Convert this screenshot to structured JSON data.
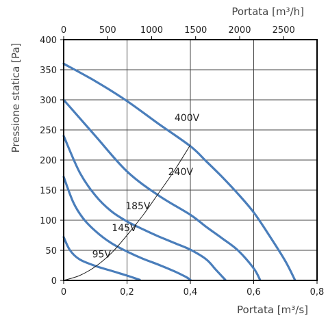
{
  "chart_data": {
    "type": "line",
    "title": "",
    "xlabel": "Portata [m³/s]",
    "ylabel": "Pressione statica [Pa]",
    "x2label": "Portata [m³/h]",
    "xlim": [
      0,
      0.8
    ],
    "ylim": [
      0,
      400
    ],
    "x2lim": [
      0,
      2880
    ],
    "x_ticks": [
      "0",
      "0,2",
      "0,4",
      "0,6",
      "0,8"
    ],
    "y_ticks": [
      "0",
      "50",
      "100",
      "150",
      "200",
      "250",
      "300",
      "350",
      "400"
    ],
    "x2_ticks": [
      "0",
      "500",
      "1000",
      "1500",
      "2000",
      "2500"
    ],
    "grid": true,
    "series": [
      {
        "name": "95V",
        "color": "#4a7ebb",
        "points": [
          [
            0,
            72
          ],
          [
            0.02,
            50
          ],
          [
            0.05,
            35
          ],
          [
            0.1,
            24
          ],
          [
            0.15,
            16
          ],
          [
            0.2,
            8
          ],
          [
            0.24,
            1
          ]
        ]
      },
      {
        "name": "145V",
        "color": "#4a7ebb",
        "points": [
          [
            0,
            172
          ],
          [
            0.03,
            130
          ],
          [
            0.06,
            104
          ],
          [
            0.1,
            82
          ],
          [
            0.15,
            62
          ],
          [
            0.2,
            48
          ],
          [
            0.25,
            36
          ],
          [
            0.3,
            26
          ],
          [
            0.35,
            15
          ],
          [
            0.385,
            6
          ],
          [
            0.4,
            1
          ]
        ]
      },
      {
        "name": "185V",
        "color": "#4a7ebb",
        "points": [
          [
            0,
            240
          ],
          [
            0.05,
            180
          ],
          [
            0.1,
            141
          ],
          [
            0.15,
            115
          ],
          [
            0.2,
            98
          ],
          [
            0.25,
            85
          ],
          [
            0.3,
            73
          ],
          [
            0.35,
            62
          ],
          [
            0.4,
            51
          ],
          [
            0.45,
            35
          ],
          [
            0.48,
            18
          ],
          [
            0.51,
            1
          ]
        ]
      },
      {
        "name": "240V",
        "color": "#4a7ebb",
        "points": [
          [
            0,
            300
          ],
          [
            0.1,
            240
          ],
          [
            0.2,
            181
          ],
          [
            0.3,
            141
          ],
          [
            0.4,
            109
          ],
          [
            0.45,
            89
          ],
          [
            0.5,
            70
          ],
          [
            0.55,
            50
          ],
          [
            0.6,
            20
          ],
          [
            0.62,
            1
          ]
        ]
      },
      {
        "name": "400V",
        "color": "#4a7ebb",
        "points": [
          [
            0,
            360
          ],
          [
            0.1,
            331
          ],
          [
            0.2,
            298
          ],
          [
            0.3,
            260
          ],
          [
            0.4,
            223
          ],
          [
            0.45,
            198
          ],
          [
            0.5,
            172
          ],
          [
            0.55,
            144
          ],
          [
            0.6,
            113
          ],
          [
            0.65,
            74
          ],
          [
            0.7,
            32
          ],
          [
            0.73,
            1
          ]
        ]
      },
      {
        "name": "",
        "color": "#222222",
        "points": [
          [
            0,
            0
          ],
          [
            0.05,
            8
          ],
          [
            0.1,
            23
          ],
          [
            0.15,
            45
          ],
          [
            0.2,
            75
          ],
          [
            0.25,
            108
          ],
          [
            0.3,
            145
          ],
          [
            0.35,
            183
          ],
          [
            0.4,
            225
          ]
        ]
      }
    ],
    "annotations": [
      {
        "text": "95V",
        "x": 0.09,
        "y": 38
      },
      {
        "text": "145V",
        "x": 0.152,
        "y": 82
      },
      {
        "text": "185V",
        "x": 0.195,
        "y": 118
      },
      {
        "text": "240V",
        "x": 0.33,
        "y": 175
      },
      {
        "text": "400V",
        "x": 0.35,
        "y": 265
      }
    ]
  }
}
